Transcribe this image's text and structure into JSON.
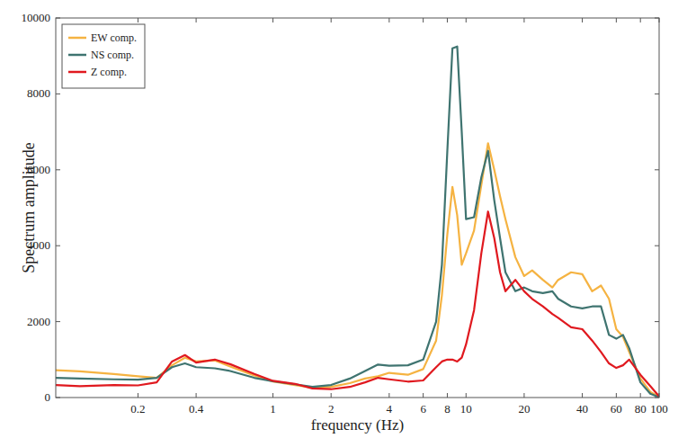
{
  "chart_data": {
    "type": "line",
    "x_label": "frequency (Hz)",
    "y_label": "Spectrum amplitude",
    "log": "x",
    "grid": false,
    "legend": "upper left",
    "xlim": [
      0.075,
      100
    ],
    "ylim": [
      0,
      10000
    ],
    "xticks": [
      0.2,
      0.4,
      1,
      2,
      4,
      6,
      8,
      10,
      20,
      40,
      60,
      80,
      100
    ],
    "yticks": [
      0,
      2000,
      4000,
      6000,
      8000,
      10000
    ],
    "x": [
      0.075,
      0.1,
      0.15,
      0.2,
      0.25,
      0.3,
      0.35,
      0.4,
      0.5,
      0.6,
      0.8,
      1,
      1.3,
      1.6,
      2,
      2.5,
      3,
      3.5,
      4,
      5,
      6,
      7,
      7.5,
      8,
      8.5,
      9,
      9.5,
      10,
      11,
      12,
      13,
      14,
      15,
      16,
      18,
      20,
      22,
      25,
      28,
      30,
      35,
      40,
      45,
      50,
      55,
      60,
      65,
      70,
      80,
      90,
      100
    ],
    "series": [
      {
        "name": "EW comp.",
        "color": "#f5b342",
        "values": [
          720,
          690,
          620,
          560,
          520,
          850,
          1050,
          950,
          980,
          820,
          580,
          420,
          330,
          260,
          280,
          380,
          500,
          560,
          650,
          600,
          750,
          1500,
          2700,
          4300,
          5550,
          4800,
          3500,
          3800,
          4400,
          5600,
          6700,
          6000,
          5300,
          4700,
          3700,
          3200,
          3350,
          3100,
          2900,
          3100,
          3300,
          3250,
          2800,
          2950,
          2600,
          1800,
          1600,
          1200,
          500,
          150,
          20
        ]
      },
      {
        "name": "NS comp.",
        "color": "#3f7470",
        "values": [
          520,
          500,
          480,
          470,
          520,
          800,
          900,
          800,
          770,
          700,
          520,
          430,
          350,
          280,
          330,
          500,
          700,
          870,
          840,
          850,
          1000,
          2000,
          3500,
          6500,
          9200,
          9250,
          7000,
          4700,
          4750,
          5800,
          6500,
          5200,
          4200,
          3300,
          2800,
          2900,
          2800,
          2750,
          2800,
          2600,
          2400,
          2350,
          2400,
          2400,
          1650,
          1550,
          1650,
          1300,
          400,
          100,
          10
        ]
      },
      {
        "name": "Z comp.",
        "color": "#e0191f",
        "values": [
          330,
          300,
          330,
          320,
          400,
          950,
          1120,
          920,
          1000,
          880,
          620,
          440,
          360,
          240,
          220,
          280,
          400,
          520,
          480,
          420,
          450,
          800,
          950,
          1000,
          1000,
          950,
          1050,
          1400,
          2300,
          3800,
          4900,
          4200,
          3300,
          2800,
          3100,
          2800,
          2600,
          2400,
          2200,
          2100,
          1850,
          1800,
          1500,
          1200,
          900,
          780,
          850,
          1000,
          600,
          300,
          30
        ]
      }
    ]
  }
}
